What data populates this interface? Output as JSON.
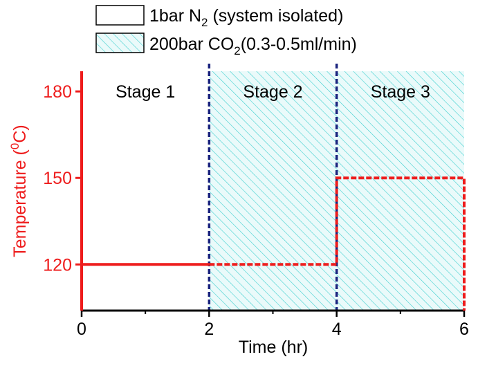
{
  "chart_data": {
    "type": "line",
    "xlabel": "Time (hr)",
    "ylabel": {
      "prefix": "Temperature (",
      "sup": "0",
      "suffix": "C)"
    },
    "xlim": [
      0,
      6
    ],
    "ylim": [
      104,
      187
    ],
    "x_ticks": [
      0,
      2,
      4,
      6
    ],
    "x_minor_ticks": [
      1,
      3,
      5
    ],
    "y_ticks": [
      120,
      150,
      180
    ],
    "stage_boundaries": [
      2,
      4
    ],
    "stage_labels": [
      {
        "label": "Stage 1",
        "x": 1
      },
      {
        "label": "Stage 2",
        "x": 3
      },
      {
        "label": "Stage 3",
        "x": 5
      }
    ],
    "legend": [
      {
        "pre": "1bar N",
        "sub": "2",
        "post": " (system isolated)",
        "style": "open"
      },
      {
        "pre": "200bar CO",
        "sub": "2",
        "post": "(0.3-0.5ml/min)",
        "style": "hatched"
      }
    ],
    "hatched_region": {
      "x_start": 2,
      "x_end": 6
    },
    "series": [
      {
        "style": "solid",
        "points": [
          [
            0,
            120
          ],
          [
            2,
            120
          ]
        ]
      },
      {
        "style": "dashed",
        "points": [
          [
            2,
            120
          ],
          [
            4,
            120
          ],
          [
            4,
            150
          ],
          [
            6,
            150
          ],
          [
            6,
            104
          ]
        ]
      }
    ],
    "colors": {
      "temperature": "#ee1c1c",
      "boundary": "#1a237e",
      "hatch": "#3fd0d0",
      "hatch_bg": "#eafafa",
      "axis": "#000000"
    },
    "legend_position": "top"
  }
}
